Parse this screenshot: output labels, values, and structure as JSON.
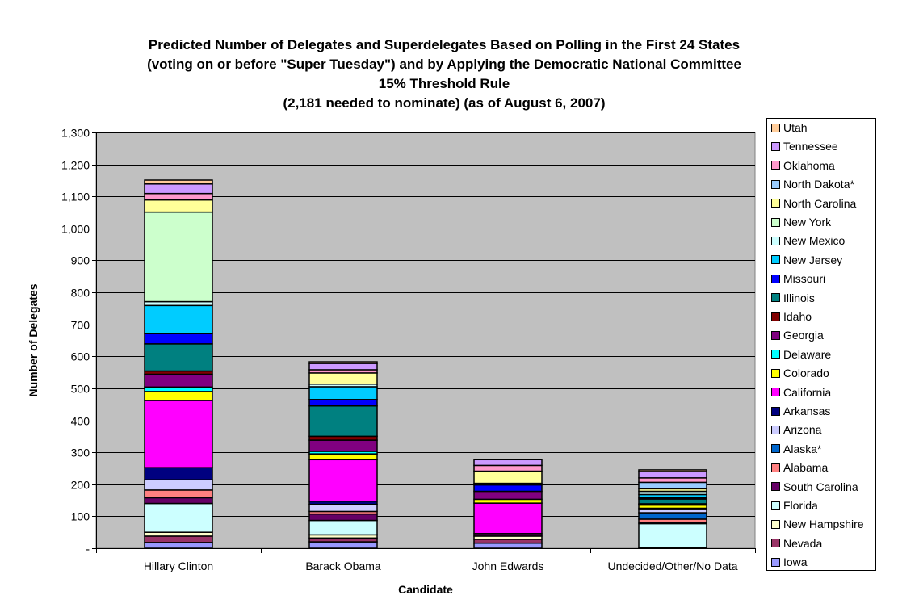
{
  "chart_data": {
    "type": "bar",
    "stacked": true,
    "title_lines": [
      "Predicted Number of Delegates and Superdelegates Based on Polling in the First 24 States",
      "(voting on or before \"Super Tuesday\") and by Applying the Democratic National Committee",
      "15% Threshold Rule",
      "(2,181 needed to nominate) (as of August 6, 2007)"
    ],
    "xlabel": "Candidate",
    "ylabel": "Number of Delegates",
    "ylim": [
      0,
      1300
    ],
    "yticks": [
      0,
      100,
      200,
      300,
      400,
      500,
      600,
      700,
      800,
      900,
      1000,
      1100,
      1200,
      1300
    ],
    "ytick_labels": [
      "-",
      "100",
      "200",
      "300",
      "400",
      "500",
      "600",
      "700",
      "800",
      "900",
      "1,000",
      "1,100",
      "1,200",
      "1,300"
    ],
    "plot_background": "#c0c0c0",
    "grid": true,
    "legend_position": "right",
    "categories": [
      "Hillary Clinton",
      "Barack Obama",
      "John Edwards",
      "Undecided/Other/No Data"
    ],
    "series": [
      {
        "name": "Iowa",
        "color": "#9999ff",
        "values": [
          18,
          20,
          16,
          0
        ]
      },
      {
        "name": "Nevada",
        "color": "#993366",
        "values": [
          20,
          12,
          12,
          0
        ]
      },
      {
        "name": "New Hampshire",
        "color": "#ffffcc",
        "values": [
          12,
          10,
          10,
          2
        ]
      },
      {
        "name": "Florida",
        "color": "#ccffff",
        "values": [
          90,
          45,
          0,
          75
        ]
      },
      {
        "name": "South Carolina",
        "color": "#660066",
        "values": [
          18,
          20,
          8,
          4
        ]
      },
      {
        "name": "Alabama",
        "color": "#ff8080",
        "values": [
          24,
          8,
          0,
          10
        ]
      },
      {
        "name": "Alaska*",
        "color": "#0066cc",
        "values": [
          0,
          0,
          0,
          20
        ]
      },
      {
        "name": "Arizona",
        "color": "#ccccff",
        "values": [
          32,
          22,
          0,
          10
        ]
      },
      {
        "name": "Arkansas",
        "color": "#000080",
        "values": [
          38,
          10,
          0,
          4
        ]
      },
      {
        "name": "California",
        "color": "#ff00ff",
        "values": [
          210,
          130,
          95,
          0
        ]
      },
      {
        "name": "Colorado",
        "color": "#ffff00",
        "values": [
          28,
          18,
          12,
          10
        ]
      },
      {
        "name": "Delaware",
        "color": "#00ffff",
        "values": [
          14,
          8,
          0,
          2
        ]
      },
      {
        "name": "Georgia",
        "color": "#800080",
        "values": [
          40,
          35,
          25,
          0
        ]
      },
      {
        "name": "Idaho",
        "color": "#800000",
        "values": [
          10,
          12,
          0,
          2
        ]
      },
      {
        "name": "Illinois",
        "color": "#008080",
        "values": [
          85,
          95,
          0,
          15
        ]
      },
      {
        "name": "Missouri",
        "color": "#0000ff",
        "values": [
          32,
          20,
          20,
          4
        ]
      },
      {
        "name": "New Jersey",
        "color": "#00ccff",
        "values": [
          88,
          40,
          0,
          10
        ]
      },
      {
        "name": "New Mexico",
        "color": "#ccffff",
        "values": [
          12,
          8,
          5,
          10
        ]
      },
      {
        "name": "New York",
        "color": "#ccffcc",
        "values": [
          280,
          0,
          0,
          0
        ]
      },
      {
        "name": "North Carolina",
        "color": "#ffff99",
        "values": [
          38,
          35,
          38,
          8
        ]
      },
      {
        "name": "North Dakota*",
        "color": "#99ccff",
        "values": [
          0,
          0,
          0,
          20
        ]
      },
      {
        "name": "Oklahoma",
        "color": "#ff99cc",
        "values": [
          20,
          10,
          18,
          14
        ]
      },
      {
        "name": "Tennessee",
        "color": "#cc99ff",
        "values": [
          30,
          20,
          18,
          20
        ]
      },
      {
        "name": "Utah",
        "color": "#ffcc99",
        "values": [
          12,
          5,
          0,
          5
        ]
      }
    ]
  }
}
